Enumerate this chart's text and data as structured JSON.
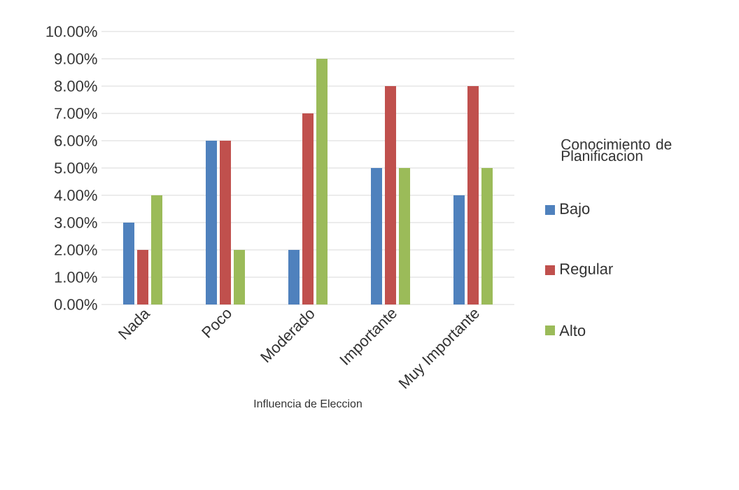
{
  "chart_data": {
    "type": "bar",
    "xlabel": "Influencia de Eleccion",
    "legend_title": "Conocimiento de Planificacion",
    "categories": [
      "Nada",
      "Poco",
      "Moderado",
      "Importante",
      "Muy Importante"
    ],
    "series": [
      {
        "name": "Bajo",
        "color": "#4f81bd",
        "values": [
          3,
          6,
          2,
          5,
          4
        ]
      },
      {
        "name": "Regular",
        "color": "#c0504d",
        "values": [
          2,
          6,
          7,
          8,
          8
        ]
      },
      {
        "name": "Alto",
        "color": "#9bbb59",
        "values": [
          4,
          2,
          9,
          5,
          5
        ]
      }
    ],
    "ylim": [
      0,
      10
    ],
    "yticks": [
      {
        "value": 0,
        "label": "0.00%"
      },
      {
        "value": 1,
        "label": "1.00%"
      },
      {
        "value": 2,
        "label": "2.00%"
      },
      {
        "value": 3,
        "label": "3.00%"
      },
      {
        "value": 4,
        "label": "4.00%"
      },
      {
        "value": 5,
        "label": "5.00%"
      },
      {
        "value": 6,
        "label": "6.00%"
      },
      {
        "value": 7,
        "label": "7.00%"
      },
      {
        "value": 8,
        "label": "8.00%"
      },
      {
        "value": 9,
        "label": "9.00%"
      },
      {
        "value": 10,
        "label": "10.00%"
      }
    ],
    "grid": "y",
    "legend": "right"
  }
}
